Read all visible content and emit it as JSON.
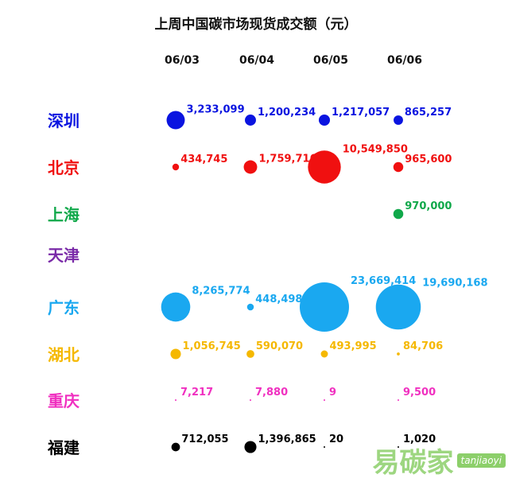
{
  "chart_data": {
    "type": "scatter",
    "subtype": "bubble",
    "title": "上周中国碳市场现货成交额（元）",
    "categories": [
      "06/03",
      "06/04",
      "06/05",
      "06/06"
    ],
    "series": [
      {
        "name": "深圳",
        "color": "#0a14e0",
        "values": [
          3233099,
          1200234,
          1217057,
          865257
        ],
        "labels": [
          "3,233,099",
          "1,200,234",
          "1,217,057",
          "865,257"
        ]
      },
      {
        "name": "北京",
        "color": "#f01010",
        "values": [
          434745,
          1759716,
          10549850,
          965600
        ],
        "labels": [
          "434,745",
          "1,759,716",
          "10,549,850",
          "965,600"
        ]
      },
      {
        "name": "上海",
        "color": "#10a84a",
        "values": [
          null,
          null,
          null,
          970000
        ],
        "labels": [
          "",
          "",
          "",
          "970,000"
        ]
      },
      {
        "name": "天津",
        "color": "#7a2aa8",
        "values": [
          null,
          null,
          null,
          null
        ],
        "labels": [
          "",
          "",
          "",
          ""
        ]
      },
      {
        "name": "广东",
        "color": "#1aa8f0",
        "values": [
          8265774,
          448498,
          23669414,
          19690168
        ],
        "labels": [
          "8,265,774",
          "448,498",
          "23,669,414",
          "19,690,168"
        ]
      },
      {
        "name": "湖北",
        "color": "#f5b800",
        "values": [
          1056745,
          590070,
          493995,
          84706
        ],
        "labels": [
          "1,056,745",
          "590,070",
          "493,995",
          "84,706"
        ]
      },
      {
        "name": "重庆",
        "color": "#f030c0",
        "values": [
          7217,
          7880,
          9,
          9500
        ],
        "labels": [
          "7,217",
          "7,880",
          "9",
          "9,500"
        ]
      },
      {
        "name": "福建",
        "color": "#000000",
        "values": [
          712055,
          1396865,
          20,
          1020
        ],
        "labels": [
          "712,055",
          "1,396,865",
          "20",
          "1,020"
        ]
      }
    ],
    "grid": false,
    "legend": "none"
  },
  "watermark": {
    "logo_cn": "易碳家",
    "logo_en": "tanjiaoyi"
  }
}
